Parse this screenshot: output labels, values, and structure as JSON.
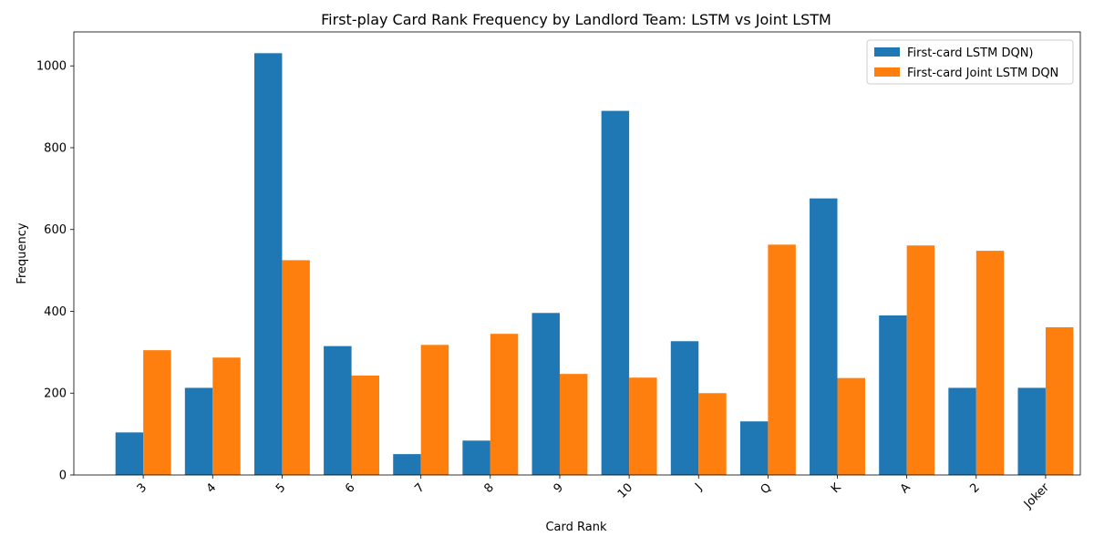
{
  "chart_data": {
    "type": "bar",
    "title": "First-play Card Rank Frequency by Landlord Team: LSTM vs Joint LSTM",
    "xlabel": "Card Rank",
    "ylabel": "Frequency",
    "categories": [
      "3",
      "4",
      "5",
      "6",
      "7",
      "8",
      "9",
      "10",
      "J",
      "Q",
      "K",
      "A",
      "2",
      "Joker"
    ],
    "series": [
      {
        "name": "First-card LSTM DQN)",
        "color": "#1f77b4",
        "values": [
          104,
          213,
          1031,
          315,
          51,
          84,
          396,
          890,
          327,
          131,
          676,
          390,
          213,
          213
        ]
      },
      {
        "name": "First-card Joint LSTM DQN",
        "color": "#ff7f0e",
        "values": [
          305,
          287,
          525,
          243,
          318,
          345,
          247,
          238,
          200,
          563,
          237,
          561,
          548,
          361
        ]
      }
    ],
    "ylim": [
      0,
      1083
    ],
    "yticks": [
      0,
      200,
      400,
      600,
      800,
      1000
    ],
    "legend_position": "top-right",
    "grid": false
  }
}
